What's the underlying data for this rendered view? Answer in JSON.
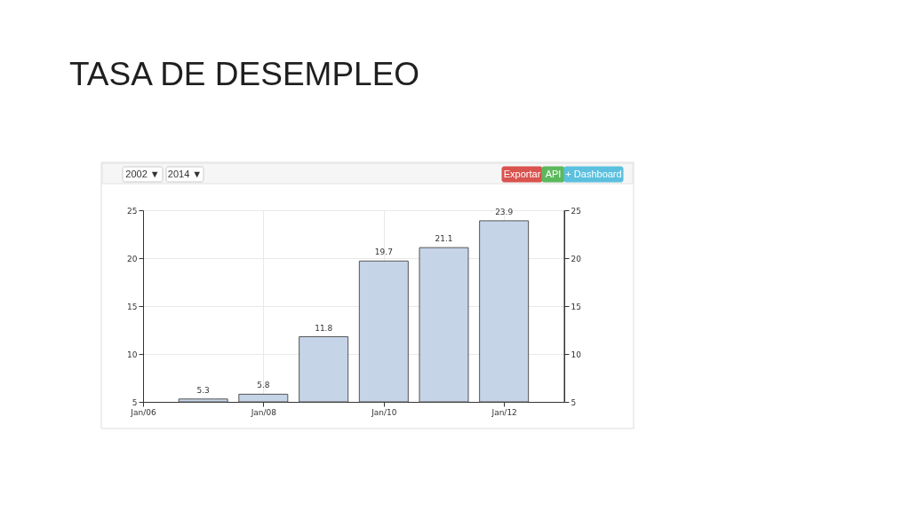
{
  "chart_data": {
    "type": "bar",
    "title": "TASA DE DESEMPLEO",
    "x": [
      "2007-01",
      "2008-01",
      "2009-01",
      "2010-01",
      "2011-01",
      "2012-01"
    ],
    "values": [
      5.3,
      5.8,
      11.8,
      19.7,
      21.1,
      23.9
    ],
    "color": "#c6d4e8",
    "xlim": [
      "2006-01",
      "2013-01"
    ],
    "xticks": [
      {
        "value": "2006-01",
        "label": "Jan/06"
      },
      {
        "value": "2008-01",
        "label": "Jan/08"
      },
      {
        "value": "2010-01",
        "label": "Jan/10"
      },
      {
        "value": "2012-01",
        "label": "Jan/12"
      }
    ],
    "ylim": [
      5,
      25
    ],
    "yticks": [
      5,
      10,
      15,
      20,
      25
    ],
    "y2lim": [
      5,
      25
    ],
    "y2ticks": [
      5,
      10,
      15,
      20,
      25
    ],
    "grid": true,
    "data_labels": true,
    "annotations": [
      "2002 ▼",
      "2014 ▼",
      "Exportar",
      "API",
      "+ Dashboard"
    ]
  }
}
